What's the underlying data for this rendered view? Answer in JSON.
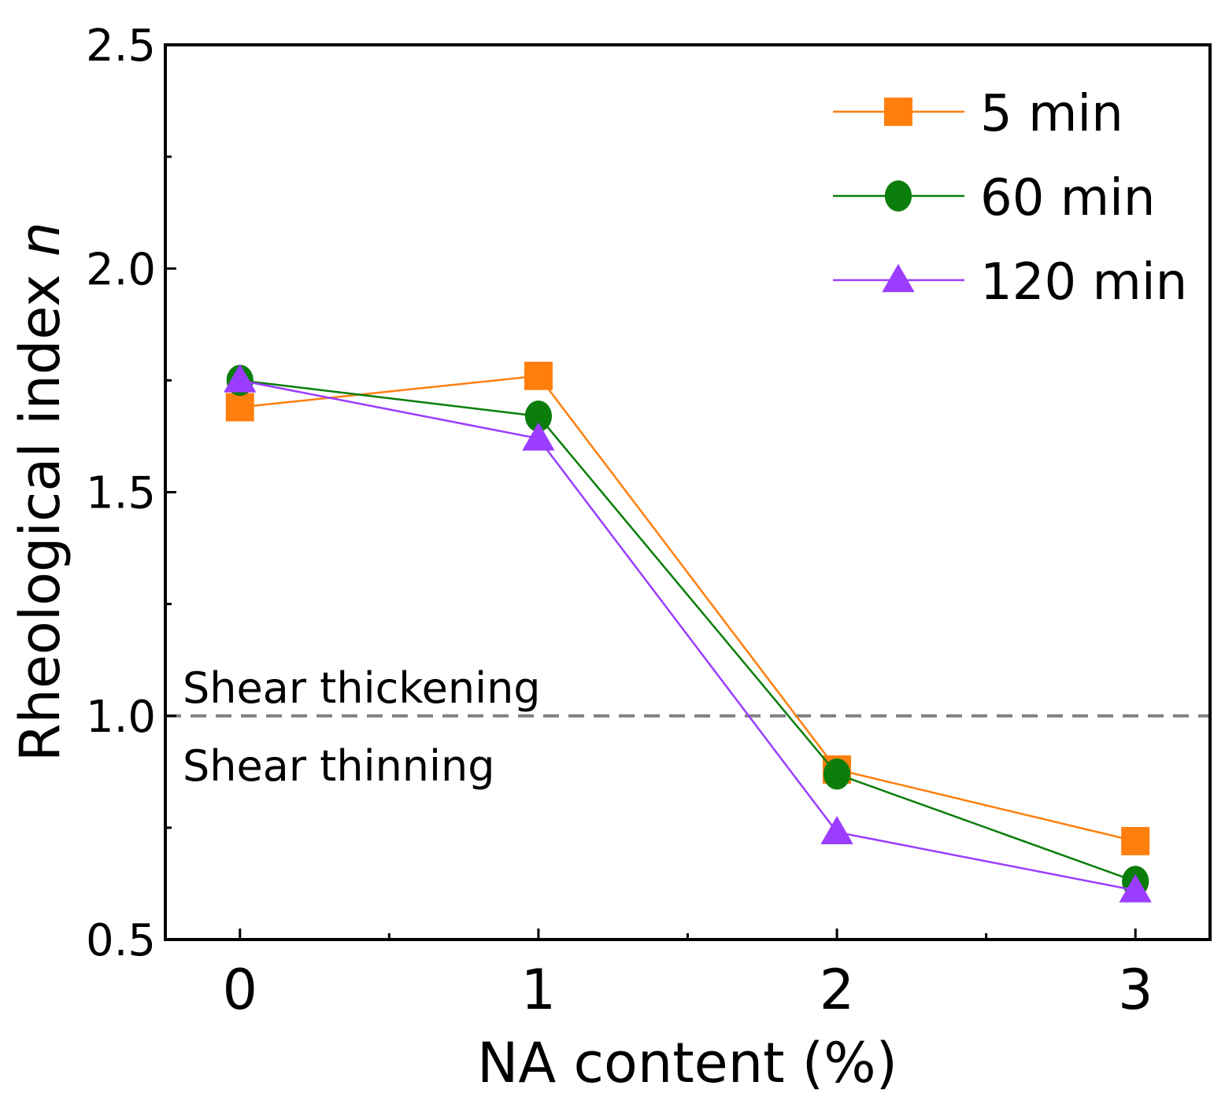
{
  "chart_data": {
    "type": "line",
    "xlabel": "NA content (%)",
    "ylabel_text": "Rheological index",
    "ylabel_var": "n",
    "x": [
      0,
      1,
      2,
      3
    ],
    "xticks": [
      "0",
      "1",
      "2",
      "3"
    ],
    "xlim": [
      -0.25,
      3.25
    ],
    "ylim": [
      0.5,
      2.5
    ],
    "yticks": [
      "0.5",
      "1.0",
      "1.5",
      "2.0",
      "2.5"
    ],
    "yminor": [
      0.75,
      1.25,
      1.75,
      2.25
    ],
    "series": [
      {
        "name": "5 min",
        "values": [
          1.69,
          1.76,
          0.88,
          0.72
        ],
        "color": "#ff7f0e",
        "marker": "square"
      },
      {
        "name": "60 min",
        "values": [
          1.75,
          1.67,
          0.87,
          0.63
        ],
        "color": "#0a7d0a",
        "marker": "circle"
      },
      {
        "name": "120 min",
        "values": [
          1.75,
          1.62,
          0.74,
          0.61
        ],
        "color": "#9b3dff",
        "marker": "triangle"
      }
    ],
    "reference_line": {
      "y": 1.0,
      "color": "#808080",
      "style": "dashed"
    },
    "annotations": {
      "above": "Shear thickening",
      "below": "Shear thinning"
    },
    "legend_position": "top-right",
    "grid": false
  }
}
